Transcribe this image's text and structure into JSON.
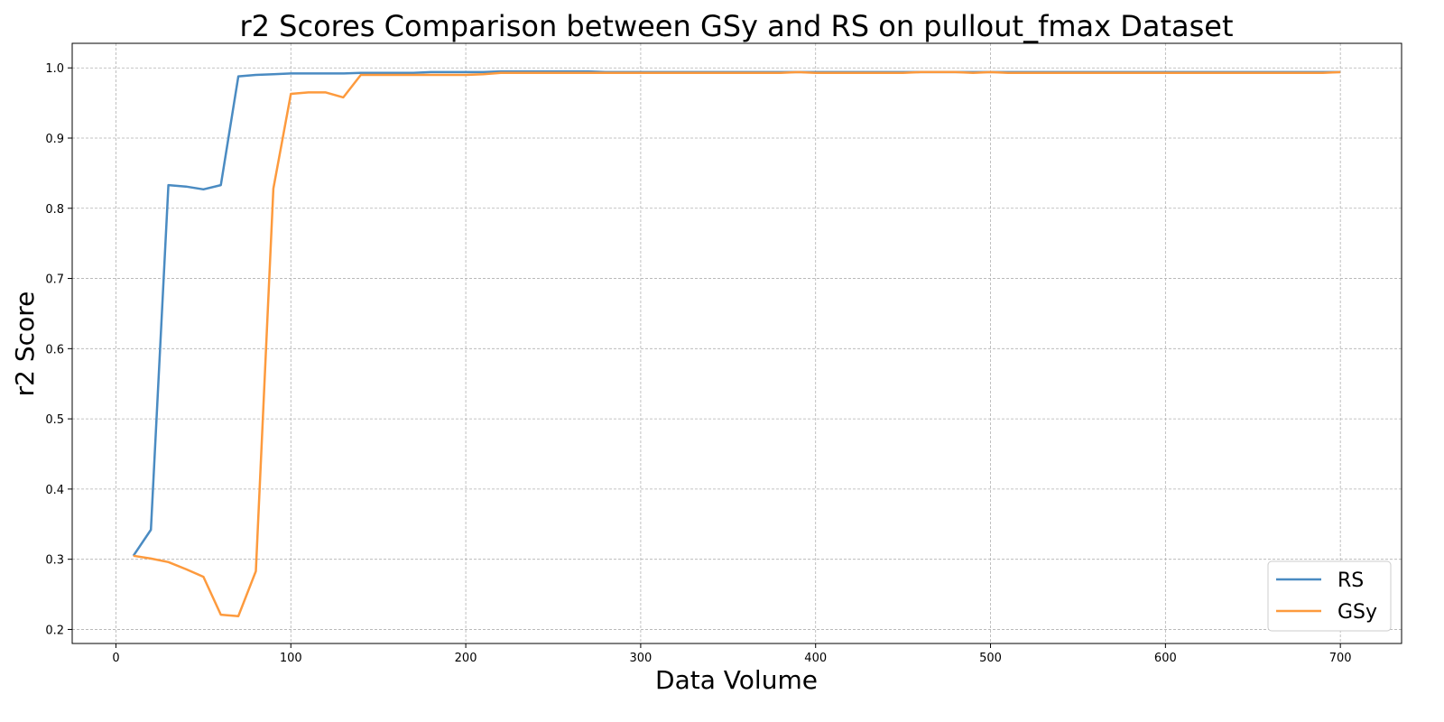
{
  "chart_data": {
    "type": "line",
    "title": "r2 Scores Comparison between GSy and RS on pullout_fmax Dataset",
    "xlabel": "Data Volume",
    "ylabel": "r2 Score",
    "xlim": [
      -25,
      735
    ],
    "ylim": [
      0.18,
      1.035
    ],
    "xticks": [
      0,
      100,
      200,
      300,
      400,
      500,
      600,
      700
    ],
    "yticks": [
      0.2,
      0.3,
      0.4,
      0.5,
      0.6,
      0.7,
      0.8,
      0.9,
      1.0
    ],
    "xtick_labels": [
      "0",
      "100",
      "200",
      "300",
      "400",
      "500",
      "600",
      "700"
    ],
    "ytick_labels": [
      "0.2",
      "0.3",
      "0.4",
      "0.5",
      "0.6",
      "0.7",
      "0.8",
      "0.9",
      "1.0"
    ],
    "grid": true,
    "legend_position": "bottom-right",
    "x": [
      10,
      20,
      30,
      40,
      50,
      60,
      70,
      80,
      90,
      100,
      110,
      120,
      130,
      140,
      150,
      160,
      170,
      180,
      190,
      200,
      210,
      220,
      230,
      240,
      250,
      260,
      270,
      280,
      290,
      300,
      310,
      320,
      330,
      340,
      350,
      360,
      370,
      380,
      390,
      400,
      410,
      420,
      430,
      440,
      450,
      460,
      470,
      480,
      490,
      500,
      510,
      520,
      530,
      540,
      550,
      560,
      570,
      580,
      590,
      600,
      610,
      620,
      630,
      640,
      650,
      660,
      670,
      680,
      690,
      700
    ],
    "series": [
      {
        "name": "RS",
        "color": "#4a8bc2",
        "values": [
          0.305,
          0.342,
          0.833,
          0.831,
          0.827,
          0.833,
          0.988,
          0.99,
          0.991,
          0.992,
          0.992,
          0.992,
          0.992,
          0.993,
          0.993,
          0.993,
          0.993,
          0.994,
          0.994,
          0.994,
          0.994,
          0.995,
          0.995,
          0.995,
          0.995,
          0.995,
          0.995,
          0.994,
          0.994,
          0.994,
          0.994,
          0.994,
          0.994,
          0.994,
          0.994,
          0.994,
          0.994,
          0.994,
          0.994,
          0.994,
          0.994,
          0.994,
          0.994,
          0.994,
          0.994,
          0.994,
          0.994,
          0.994,
          0.994,
          0.994,
          0.994,
          0.994,
          0.994,
          0.994,
          0.994,
          0.994,
          0.994,
          0.994,
          0.994,
          0.994,
          0.994,
          0.994,
          0.994,
          0.994,
          0.994,
          0.994,
          0.994,
          0.994,
          0.994,
          0.994
        ]
      },
      {
        "name": "GSy",
        "color": "#fd9a3d",
        "values": [
          0.305,
          0.301,
          0.296,
          0.286,
          0.275,
          0.221,
          0.219,
          0.283,
          0.828,
          0.963,
          0.965,
          0.965,
          0.958,
          0.99,
          0.99,
          0.99,
          0.99,
          0.99,
          0.99,
          0.99,
          0.991,
          0.993,
          0.993,
          0.993,
          0.993,
          0.993,
          0.993,
          0.993,
          0.993,
          0.993,
          0.993,
          0.993,
          0.993,
          0.993,
          0.993,
          0.993,
          0.993,
          0.993,
          0.994,
          0.993,
          0.993,
          0.993,
          0.993,
          0.993,
          0.993,
          0.994,
          0.994,
          0.994,
          0.993,
          0.994,
          0.993,
          0.993,
          0.993,
          0.993,
          0.993,
          0.993,
          0.993,
          0.993,
          0.993,
          0.993,
          0.993,
          0.993,
          0.993,
          0.993,
          0.993,
          0.993,
          0.993,
          0.993,
          0.993,
          0.994
        ]
      }
    ]
  }
}
